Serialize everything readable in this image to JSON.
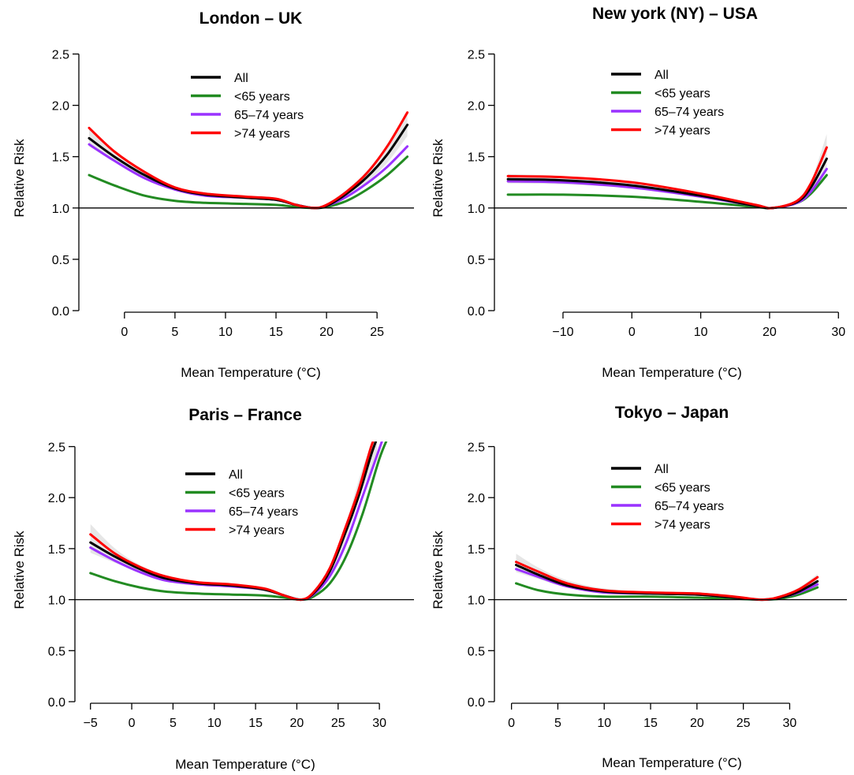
{
  "chart_data": [
    {
      "type": "line",
      "title": "London – UK",
      "xlabel": "Mean Temperature (°C)",
      "ylabel": "Relative Risk",
      "xlim": [
        -4.2,
        28.5
      ],
      "ylim": [
        0,
        2.55
      ],
      "xticks": [
        0,
        5,
        10,
        15,
        20,
        25
      ],
      "yticks": [
        "0.0",
        "0.5",
        "1.0",
        "1.5",
        "2.0",
        "2.5"
      ],
      "reference_line": 1.0,
      "legend_position": "top-center",
      "series": [
        {
          "name": "All",
          "color": "#000000",
          "x": [
            -3.5,
            -1,
            2,
            5,
            8,
            12,
            15,
            17,
            18.7,
            20,
            22,
            24,
            26,
            28
          ],
          "y": [
            1.68,
            1.5,
            1.32,
            1.19,
            1.13,
            1.1,
            1.08,
            1.03,
            1.0,
            1.02,
            1.14,
            1.3,
            1.52,
            1.81
          ]
        },
        {
          "name": "<65 years",
          "color": "#228b22",
          "x": [
            -3.5,
            -1,
            2,
            5,
            8,
            12,
            15,
            17,
            18.7,
            20,
            22,
            24,
            26,
            28
          ],
          "y": [
            1.32,
            1.22,
            1.12,
            1.07,
            1.05,
            1.04,
            1.03,
            1.01,
            1.0,
            1.01,
            1.07,
            1.18,
            1.32,
            1.5
          ]
        },
        {
          "name": "65–74 years",
          "color": "#9a32ff",
          "x": [
            -3.5,
            -1,
            2,
            5,
            8,
            12,
            15,
            17,
            18.7,
            20,
            22,
            24,
            26,
            28
          ],
          "y": [
            1.62,
            1.46,
            1.29,
            1.18,
            1.12,
            1.1,
            1.08,
            1.03,
            1.0,
            1.02,
            1.11,
            1.24,
            1.4,
            1.6
          ]
        },
        {
          "name": ">74 years",
          "color": "#ff0000",
          "x": [
            -3.5,
            -1,
            2,
            5,
            8,
            12,
            15,
            17,
            18.7,
            20,
            22,
            24,
            26,
            28
          ],
          "y": [
            1.78,
            1.55,
            1.35,
            1.2,
            1.14,
            1.11,
            1.09,
            1.03,
            1.0,
            1.03,
            1.16,
            1.34,
            1.6,
            1.93
          ]
        }
      ],
      "band": {
        "x": [
          -3.5,
          -1,
          2,
          5,
          8,
          12,
          15,
          17,
          18.7,
          20,
          22,
          24,
          26,
          28
        ],
        "lower": [
          1.6,
          1.45,
          1.29,
          1.17,
          1.12,
          1.09,
          1.07,
          1.02,
          1.0,
          1.01,
          1.11,
          1.25,
          1.44,
          1.7
        ],
        "upper": [
          1.77,
          1.55,
          1.36,
          1.21,
          1.15,
          1.12,
          1.1,
          1.04,
          1.0,
          1.04,
          1.18,
          1.36,
          1.62,
          1.93
        ]
      }
    },
    {
      "type": "line",
      "title": "New york (NY) – USA",
      "xlabel": "Mean Temperature (°C)",
      "ylabel": "Relative Risk",
      "xlim": [
        -19.5,
        31
      ],
      "ylim": [
        0,
        2.55
      ],
      "xticks": [
        -10,
        0,
        10,
        20,
        30
      ],
      "yticks": [
        "0.0",
        "0.5",
        "1.0",
        "1.5",
        "2.0",
        "2.5"
      ],
      "reference_line": 1.0,
      "legend_position": "top-center",
      "series": [
        {
          "name": "All",
          "color": "#000000",
          "x": [
            -18,
            -10,
            0,
            10,
            18,
            20.5,
            24,
            26,
            28.3
          ],
          "y": [
            1.28,
            1.27,
            1.22,
            1.12,
            1.02,
            1.0,
            1.06,
            1.2,
            1.48
          ]
        },
        {
          "name": "<65 years",
          "color": "#228b22",
          "x": [
            -18,
            -10,
            0,
            10,
            18,
            20.5,
            24,
            26,
            28.3
          ],
          "y": [
            1.13,
            1.13,
            1.11,
            1.06,
            1.01,
            1.0,
            1.05,
            1.14,
            1.32
          ]
        },
        {
          "name": "65–74 years",
          "color": "#9a32ff",
          "x": [
            -18,
            -10,
            0,
            10,
            18,
            20.5,
            24,
            26,
            28.3
          ],
          "y": [
            1.26,
            1.25,
            1.2,
            1.11,
            1.02,
            1.0,
            1.05,
            1.16,
            1.38
          ]
        },
        {
          "name": ">74 years",
          "color": "#ff0000",
          "x": [
            -18,
            -10,
            0,
            10,
            18,
            20.5,
            24,
            26,
            28.3
          ],
          "y": [
            1.31,
            1.3,
            1.25,
            1.14,
            1.03,
            1.0,
            1.07,
            1.24,
            1.59
          ]
        }
      ],
      "band": {
        "x": [
          -18,
          -10,
          0,
          10,
          18,
          20.5,
          24,
          26,
          28.3
        ],
        "lower": [
          1.24,
          1.23,
          1.19,
          1.1,
          1.01,
          1.0,
          1.04,
          1.14,
          1.36
        ],
        "upper": [
          1.33,
          1.31,
          1.26,
          1.15,
          1.03,
          1.0,
          1.08,
          1.26,
          1.72
        ]
      }
    },
    {
      "type": "line",
      "title": "Paris – France",
      "xlabel": "Mean Temperature (°C)",
      "ylabel": "Relative Risk",
      "xlim": [
        -6.5,
        34
      ],
      "ylim": [
        0,
        2.55
      ],
      "xticks": [
        -5,
        0,
        5,
        10,
        15,
        20,
        25,
        30
      ],
      "yticks": [
        "0.0",
        "0.5",
        "1.0",
        "1.5",
        "2.0",
        "2.5"
      ],
      "reference_line": 1.0,
      "legend_position": "top-center",
      "series": [
        {
          "name": "All",
          "color": "#000000",
          "x": [
            -5,
            -2,
            1,
            4,
            8,
            12,
            16,
            18.5,
            20.5,
            22,
            24,
            26,
            27.5,
            29,
            29.9
          ],
          "y": [
            1.56,
            1.42,
            1.3,
            1.21,
            1.16,
            1.14,
            1.1,
            1.04,
            1.0,
            1.06,
            1.28,
            1.68,
            2.02,
            2.42,
            2.62
          ]
        },
        {
          "name": "<65 years",
          "color": "#228b22",
          "x": [
            -5,
            -2,
            1,
            4,
            8,
            12,
            16,
            18.5,
            20.5,
            22,
            24,
            26,
            28,
            30,
            31.2
          ],
          "y": [
            1.26,
            1.18,
            1.12,
            1.08,
            1.06,
            1.05,
            1.04,
            1.02,
            1.0,
            1.03,
            1.16,
            1.43,
            1.85,
            2.38,
            2.62
          ]
        },
        {
          "name": "65–74 years",
          "color": "#9a32ff",
          "x": [
            -5,
            -2,
            1,
            4,
            8,
            12,
            16,
            18.5,
            20.5,
            22,
            24,
            26,
            28,
            30,
            30.6
          ],
          "y": [
            1.51,
            1.38,
            1.27,
            1.19,
            1.15,
            1.13,
            1.1,
            1.04,
            1.0,
            1.05,
            1.23,
            1.56,
            2.02,
            2.48,
            2.62
          ]
        },
        {
          "name": ">74 years",
          "color": "#ff0000",
          "x": [
            -5,
            -2,
            1,
            4,
            8,
            12,
            16,
            18.5,
            20.5,
            22,
            24,
            26,
            27.5,
            29,
            29.7
          ],
          "y": [
            1.64,
            1.45,
            1.32,
            1.23,
            1.17,
            1.15,
            1.11,
            1.04,
            1.0,
            1.07,
            1.31,
            1.73,
            2.08,
            2.5,
            2.62
          ]
        }
      ],
      "band": {
        "x": [
          -5,
          -2,
          1,
          4,
          8,
          12,
          16,
          18.5,
          20.5,
          22,
          24,
          26,
          28,
          29.7
        ],
        "lower": [
          1.46,
          1.36,
          1.27,
          1.19,
          1.14,
          1.12,
          1.08,
          1.03,
          1.0,
          1.04,
          1.24,
          1.6,
          2.08,
          2.4
        ],
        "upper": [
          1.74,
          1.5,
          1.34,
          1.24,
          1.18,
          1.16,
          1.12,
          1.05,
          1.0,
          1.08,
          1.33,
          1.76,
          2.3,
          2.62
        ]
      }
    },
    {
      "type": "line",
      "title": "Tokyo – Japan",
      "xlabel": "Mean Temperature (°C)",
      "ylabel": "Relative Risk",
      "xlim": [
        -1.5,
        36
      ],
      "ylim": [
        0,
        2.55
      ],
      "xticks": [
        0,
        5,
        10,
        15,
        20,
        25,
        30
      ],
      "yticks": [
        "0.0",
        "0.5",
        "1.0",
        "1.5",
        "2.0",
        "2.5"
      ],
      "reference_line": 1.0,
      "legend_position": "top-center",
      "series": [
        {
          "name": "All",
          "color": "#000000",
          "x": [
            0.5,
            3,
            6,
            10,
            15,
            20,
            24,
            27,
            29,
            31,
            33
          ],
          "y": [
            1.34,
            1.24,
            1.14,
            1.08,
            1.06,
            1.05,
            1.02,
            1.0,
            1.02,
            1.08,
            1.18
          ]
        },
        {
          "name": "<65 years",
          "color": "#228b22",
          "x": [
            0.5,
            3,
            6,
            10,
            15,
            20,
            24,
            27,
            29,
            31,
            33
          ],
          "y": [
            1.16,
            1.09,
            1.05,
            1.03,
            1.03,
            1.02,
            1.01,
            1.0,
            1.01,
            1.05,
            1.12
          ]
        },
        {
          "name": "65–74 years",
          "color": "#9a32ff",
          "x": [
            0.5,
            3,
            6,
            10,
            15,
            20,
            24,
            27,
            29,
            31,
            33
          ],
          "y": [
            1.3,
            1.22,
            1.13,
            1.07,
            1.06,
            1.05,
            1.02,
            1.0,
            1.02,
            1.07,
            1.15
          ]
        },
        {
          "name": ">74 years",
          "color": "#ff0000",
          "x": [
            0.5,
            3,
            6,
            10,
            15,
            20,
            24,
            27,
            29,
            31,
            33
          ],
          "y": [
            1.37,
            1.27,
            1.16,
            1.09,
            1.07,
            1.06,
            1.03,
            1.0,
            1.03,
            1.1,
            1.22
          ]
        }
      ],
      "band": {
        "x": [
          0.5,
          3,
          6,
          10,
          15,
          20,
          24,
          27,
          29,
          31,
          33
        ],
        "lower": [
          1.27,
          1.2,
          1.12,
          1.07,
          1.05,
          1.04,
          1.01,
          1.0,
          1.01,
          1.06,
          1.13
        ],
        "upper": [
          1.45,
          1.31,
          1.19,
          1.11,
          1.08,
          1.07,
          1.04,
          1.0,
          1.04,
          1.12,
          1.25
        ]
      }
    }
  ]
}
